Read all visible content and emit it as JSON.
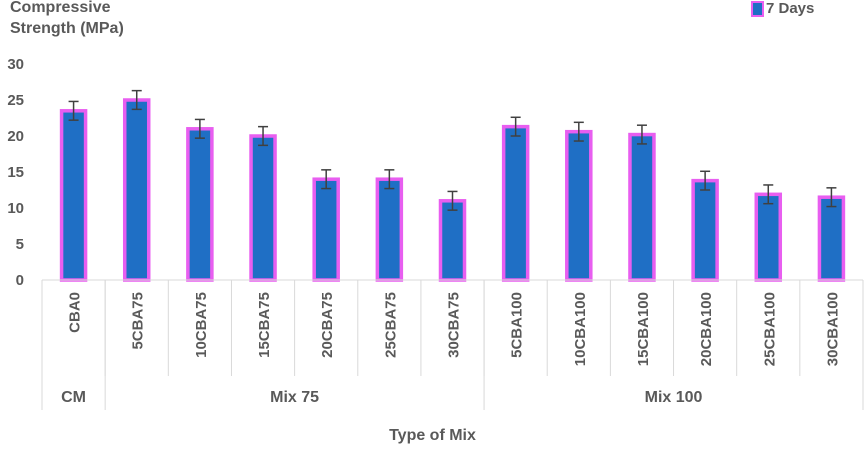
{
  "chart_data": {
    "type": "bar",
    "ylabel_lines": [
      "Compressive",
      "Strength (MPa)"
    ],
    "xlabel": "Type of Mix",
    "ylim": [
      0,
      30
    ],
    "yticks": [
      "0",
      "5",
      "10",
      "15",
      "20",
      "25",
      "30"
    ],
    "legend": "top-right",
    "series": [
      {
        "name": "7 Days",
        "color": "#1f6fc5",
        "border_color": "#e85ef0",
        "values": [
          23.5,
          25.0,
          21.0,
          20.0,
          14.0,
          14.0,
          11.0,
          21.3,
          20.6,
          20.2,
          13.8,
          11.9,
          11.5
        ],
        "errors": [
          1.3,
          1.3,
          1.3,
          1.3,
          1.3,
          1.3,
          1.3,
          1.3,
          1.3,
          1.3,
          1.3,
          1.3,
          1.3
        ]
      }
    ],
    "categories": [
      "CBA0",
      "5CBA75",
      "10CBA75",
      "15CBA75",
      "20CBA75",
      "25CBA75",
      "30CBA75",
      "5CBA100",
      "10CBA100",
      "15CBA100",
      "20CBA100",
      "25CBA100",
      "30CBA100"
    ],
    "groups": [
      {
        "label": "CM",
        "count": 1
      },
      {
        "label": "Mix 75",
        "count": 6
      },
      {
        "label": "Mix 100",
        "count": 6
      }
    ],
    "axis_color": "#d9d9d9",
    "error_color": "#404040"
  }
}
